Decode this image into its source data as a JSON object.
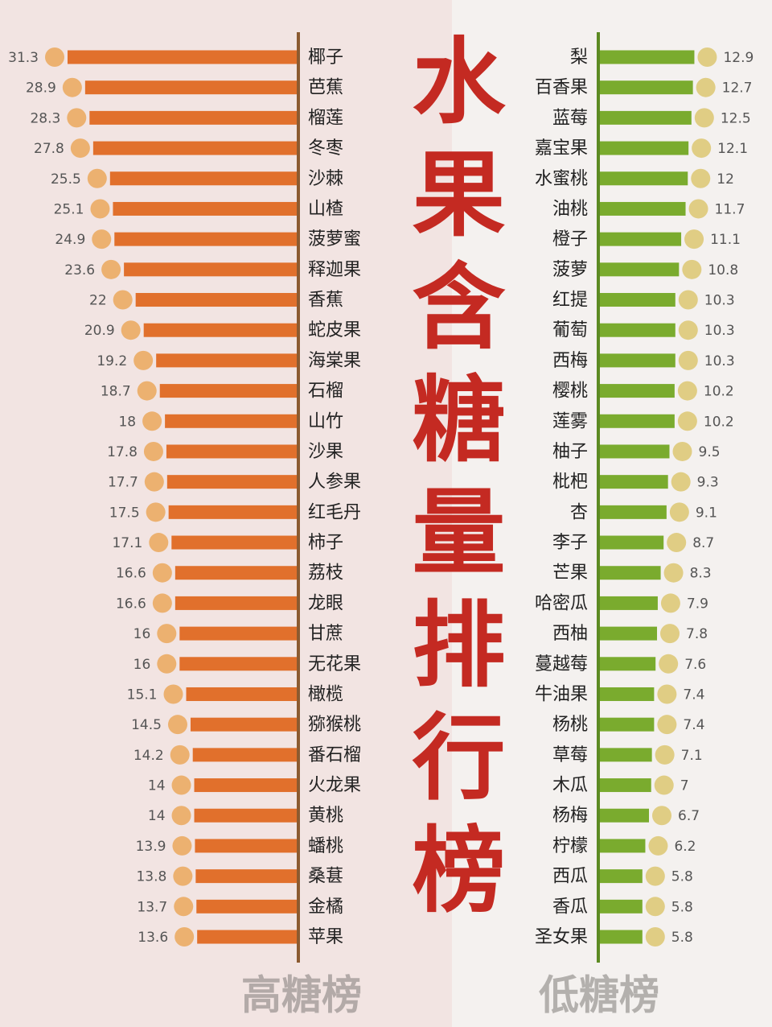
{
  "title": "水果含糖量排行榜",
  "chart_data": [
    {
      "type": "bar",
      "title": "高糖榜",
      "color": "#e1702c",
      "categories": [
        "椰子",
        "芭蕉",
        "榴莲",
        "冬枣",
        "沙棘",
        "山楂",
        "菠萝蜜",
        "释迦果",
        "香蕉",
        "蛇皮果",
        "海棠果",
        "石榴",
        "山竹",
        "沙果",
        "人参果",
        "红毛丹",
        "柿子",
        "荔枝",
        "龙眼",
        "甘蔗",
        "无花果",
        "橄榄",
        "猕猴桃",
        "番石榴",
        "火龙果",
        "黄桃",
        "蟠桃",
        "桑葚",
        "金橘",
        "苹果"
      ],
      "values": [
        31.3,
        28.9,
        28.3,
        27.8,
        25.5,
        25.1,
        24.9,
        23.6,
        22,
        20.9,
        19.2,
        18.7,
        18,
        17.8,
        17.7,
        17.5,
        17.1,
        16.6,
        16.6,
        16,
        16,
        15.1,
        14.5,
        14.2,
        14,
        14,
        13.9,
        13.8,
        13.7,
        13.6
      ]
    },
    {
      "type": "bar",
      "title": "低糖榜",
      "color": "#7aab2e",
      "categories": [
        "梨",
        "百香果",
        "蓝莓",
        "嘉宝果",
        "水蜜桃",
        "油桃",
        "橙子",
        "菠萝",
        "红提",
        "葡萄",
        "西梅",
        "樱桃",
        "莲雾",
        "柚子",
        "枇杷",
        "杏",
        "李子",
        "芒果",
        "哈密瓜",
        "西柚",
        "蔓越莓",
        "牛油果",
        "杨桃",
        "草莓",
        "木瓜",
        "杨梅",
        "柠檬",
        "西瓜",
        "香瓜",
        "圣女果"
      ],
      "values": [
        12.9,
        12.7,
        12.5,
        12.1,
        12,
        11.7,
        11.1,
        10.8,
        10.3,
        10.3,
        10.3,
        10.2,
        10.2,
        9.5,
        9.3,
        9.1,
        8.7,
        8.3,
        7.9,
        7.8,
        7.6,
        7.4,
        7.4,
        7.1,
        7,
        6.7,
        6.2,
        5.8,
        5.8,
        5.8
      ]
    }
  ]
}
